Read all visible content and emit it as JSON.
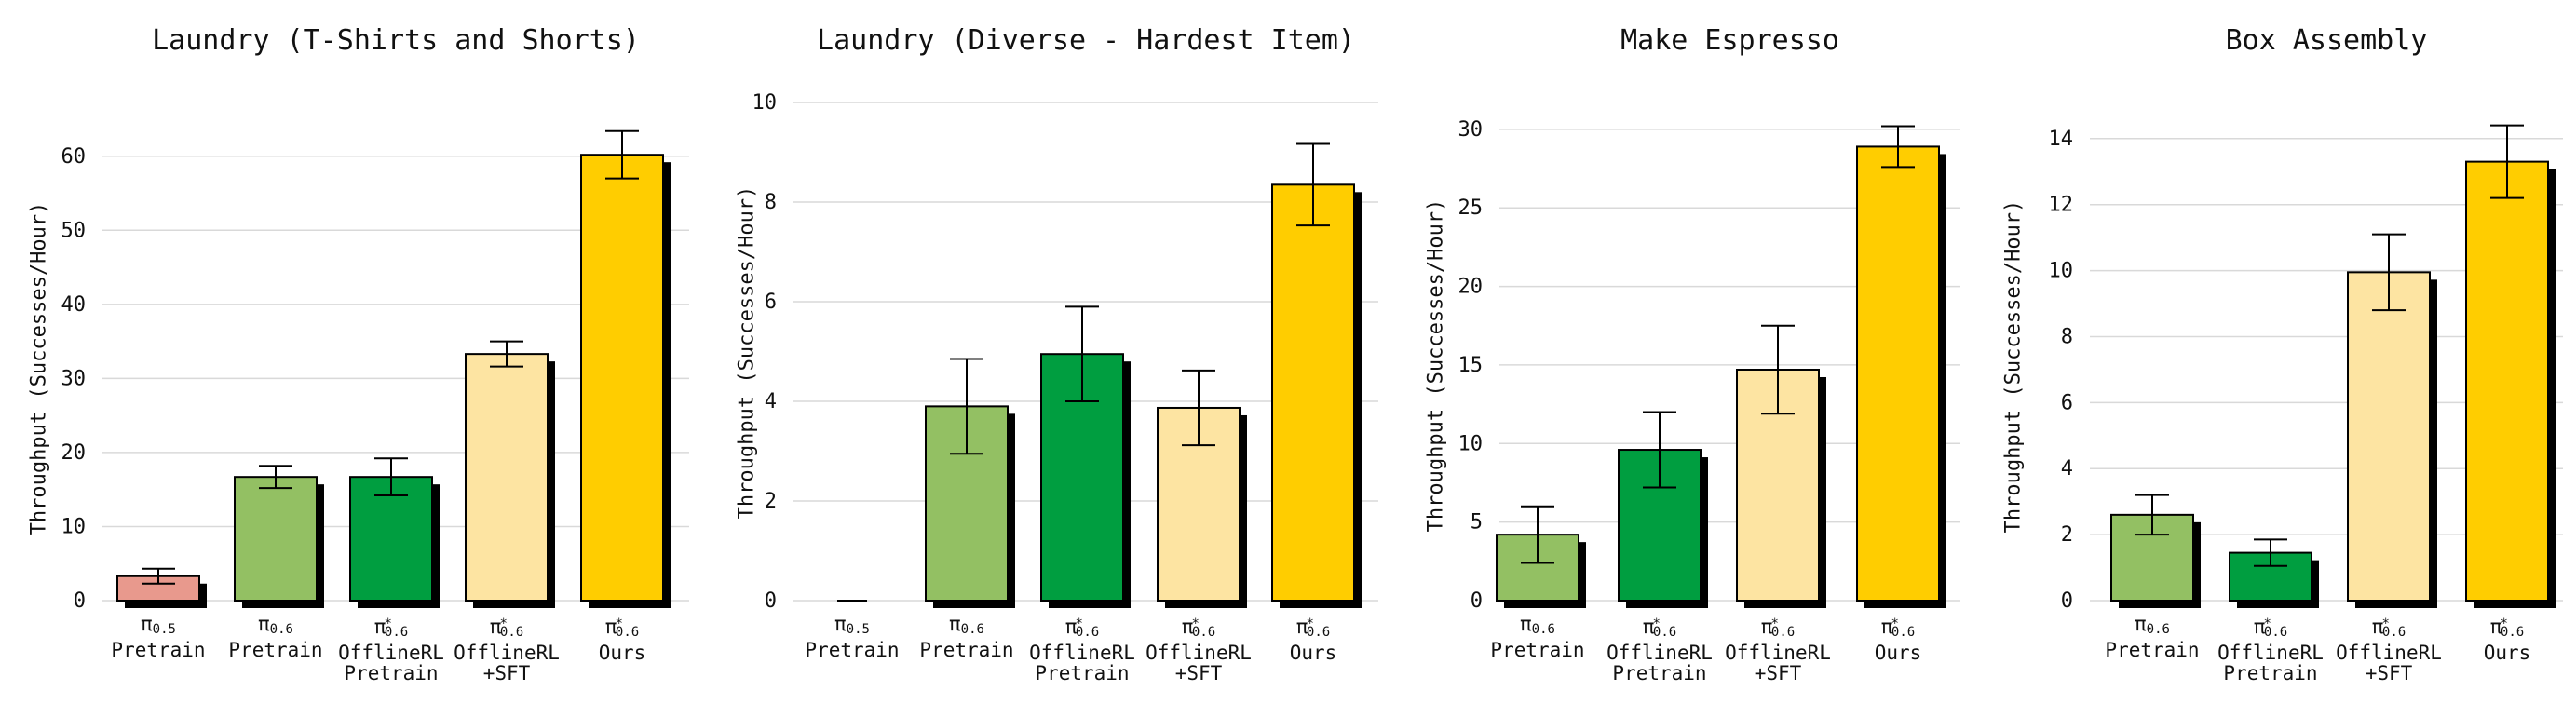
{
  "chart_data": [
    {
      "type": "bar",
      "title": "Laundry (T-Shirts and Shorts)",
      "ylabel": "Throughput (Successes/Hour)",
      "ylim": [
        0,
        65
      ],
      "yticks": [
        0,
        10,
        20,
        30,
        40,
        50,
        60
      ],
      "grid": true,
      "categories": [
        {
          "symbol": "π",
          "sub": "0.5",
          "sup": "",
          "lines": [
            "Pretrain"
          ],
          "color": "#E8998D"
        },
        {
          "symbol": "π",
          "sub": "0.6",
          "sup": "",
          "lines": [
            "Pretrain"
          ],
          "color": "#93C063"
        },
        {
          "symbol": "π",
          "sub": "0.6",
          "sup": "*",
          "lines": [
            "OfflineRL",
            "Pretrain"
          ],
          "color": "#009E40"
        },
        {
          "symbol": "π",
          "sub": "0.6",
          "sup": "*",
          "lines": [
            "OfflineRL",
            "+SFT"
          ],
          "color": "#FDE4A2"
        },
        {
          "symbol": "π",
          "sub": "0.6",
          "sup": "*",
          "lines": [
            "Ours"
          ],
          "color": "#FFCD00"
        }
      ],
      "values": [
        3.3,
        16.7,
        16.7,
        33.3,
        60.2
      ],
      "errors": [
        1.0,
        1.5,
        2.5,
        1.7,
        3.2
      ]
    },
    {
      "type": "bar",
      "title": "Laundry (Diverse - Hardest Item)",
      "ylabel": "Throughput (Successes/Hour)",
      "ylim": [
        0,
        10.3
      ],
      "yticks": [
        0,
        2,
        4,
        6,
        8,
        10
      ],
      "grid": true,
      "categories": [
        {
          "symbol": "π",
          "sub": "0.5",
          "sup": "",
          "lines": [
            "Pretrain"
          ],
          "color": "#E8998D"
        },
        {
          "symbol": "π",
          "sub": "0.6",
          "sup": "",
          "lines": [
            "Pretrain"
          ],
          "color": "#93C063"
        },
        {
          "symbol": "π",
          "sub": "0.6",
          "sup": "*",
          "lines": [
            "OfflineRL",
            "Pretrain"
          ],
          "color": "#009E40"
        },
        {
          "symbol": "π",
          "sub": "0.6",
          "sup": "*",
          "lines": [
            "OfflineRL",
            "+SFT"
          ],
          "color": "#FDE4A2"
        },
        {
          "symbol": "π",
          "sub": "0.6",
          "sup": "*",
          "lines": [
            "Ours"
          ],
          "color": "#FFCD00"
        }
      ],
      "values": [
        0.0,
        3.9,
        4.95,
        3.87,
        8.35
      ],
      "errors": [
        0.0,
        0.95,
        0.95,
        0.75,
        0.82
      ]
    },
    {
      "type": "bar",
      "title": "Make Espresso",
      "ylabel": "Throughput (Successes/Hour)",
      "ylim": [
        0,
        31
      ],
      "yticks": [
        0,
        5,
        10,
        15,
        20,
        25,
        30
      ],
      "grid": true,
      "categories": [
        {
          "symbol": "π",
          "sub": "0.6",
          "sup": "",
          "lines": [
            "Pretrain"
          ],
          "color": "#93C063"
        },
        {
          "symbol": "π",
          "sub": "0.6",
          "sup": "*",
          "lines": [
            "OfflineRL",
            "Pretrain"
          ],
          "color": "#009E40"
        },
        {
          "symbol": "π",
          "sub": "0.6",
          "sup": "*",
          "lines": [
            "OfflineRL",
            "+SFT"
          ],
          "color": "#FDE4A2"
        },
        {
          "symbol": "π",
          "sub": "0.6",
          "sup": "*",
          "lines": [
            "Ours"
          ],
          "color": "#FFCD00"
        }
      ],
      "values": [
        4.2,
        9.6,
        14.7,
        28.9
      ],
      "errors": [
        1.8,
        2.4,
        2.8,
        1.3
      ]
    },
    {
      "type": "bar",
      "title": "Box Assembly",
      "ylabel": "Throughput (Successes/Hour)",
      "ylim": [
        0,
        14.7
      ],
      "yticks": [
        0,
        2,
        4,
        6,
        8,
        10,
        12,
        14
      ],
      "grid": true,
      "categories": [
        {
          "symbol": "π",
          "sub": "0.6",
          "sup": "",
          "lines": [
            "Pretrain"
          ],
          "color": "#93C063"
        },
        {
          "symbol": "π",
          "sub": "0.6",
          "sup": "*",
          "lines": [
            "OfflineRL",
            "Pretrain"
          ],
          "color": "#009E40"
        },
        {
          "symbol": "π",
          "sub": "0.6",
          "sup": "*",
          "lines": [
            "OfflineRL",
            "+SFT"
          ],
          "color": "#FDE4A2"
        },
        {
          "symbol": "π",
          "sub": "0.6",
          "sup": "*",
          "lines": [
            "Ours"
          ],
          "color": "#FFCD00"
        }
      ],
      "values": [
        2.6,
        1.45,
        9.95,
        13.3
      ],
      "errors": [
        0.6,
        0.4,
        1.15,
        1.1
      ]
    }
  ]
}
